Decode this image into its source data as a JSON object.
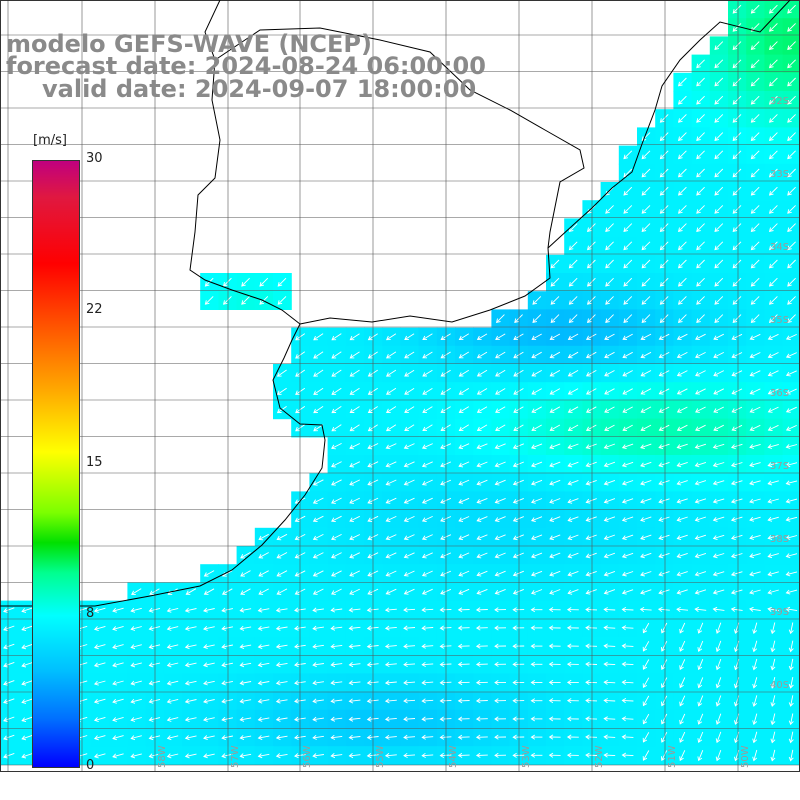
{
  "title": {
    "line1": "modelo GEFS-WAVE (NCEP)",
    "line2": "forecast date: 2024-08-24 06:00:00",
    "line3": "valid date: 2024-09-07 18:00:00"
  },
  "colorbar": {
    "unit": "[m/s]",
    "ticks": [
      "30",
      "22",
      "15",
      "8",
      "0"
    ],
    "colors": [
      "#0000ff",
      "#0070ff",
      "#00c0ff",
      "#00ffff",
      "#00ff90",
      "#00e000",
      "#7cff00",
      "#ffff00",
      "#ffaa00",
      "#ff5a00",
      "#ff0000",
      "#c0007f"
    ]
  },
  "grid": {
    "lat_labels": [
      "32S",
      "33S",
      "34S",
      "35S",
      "36S",
      "37S",
      "38S",
      "39S",
      "40S"
    ],
    "lon_labels": [
      "58W",
      "57W",
      "56W",
      "55W",
      "54W",
      "53W",
      "52W",
      "51W",
      "50W"
    ]
  },
  "colors": {
    "land": "#ffffff",
    "coast": "#000000",
    "grid": "#555555",
    "arrow": "#ffffff"
  }
}
